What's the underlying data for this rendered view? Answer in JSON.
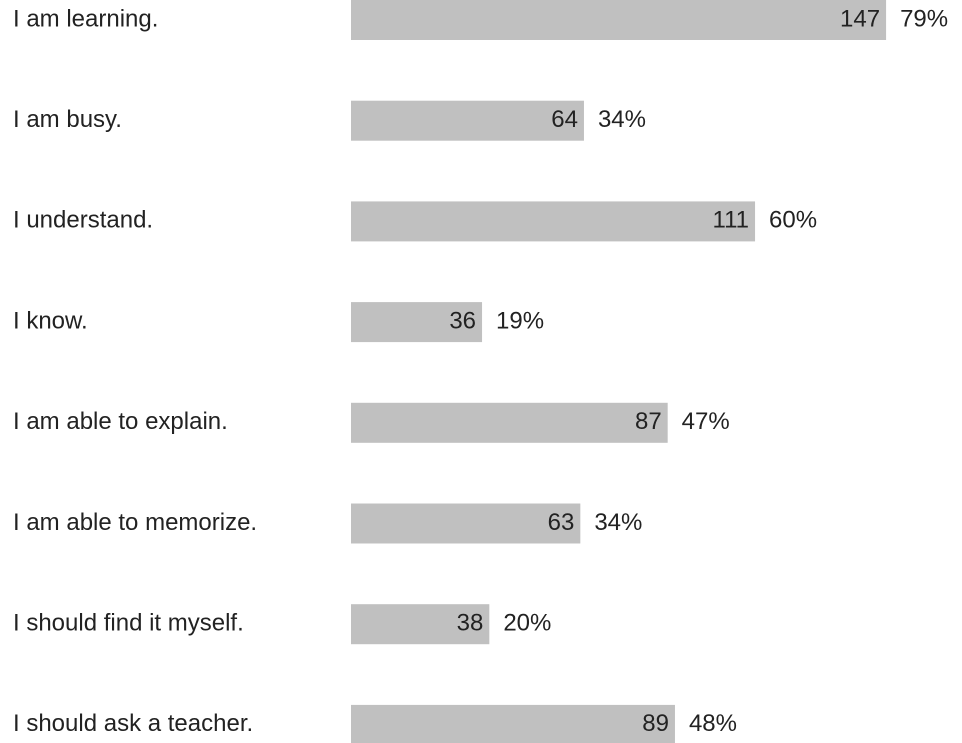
{
  "chart_data": {
    "type": "bar",
    "orientation": "horizontal",
    "categories": [
      "I am learning.",
      "I am busy.",
      "I understand.",
      "I know.",
      "I am able to explain.",
      "I am able to memorize.",
      "I should find it myself.",
      "I should ask a teacher."
    ],
    "values": [
      147,
      64,
      111,
      36,
      87,
      63,
      38,
      89
    ],
    "percent_labels": [
      "79%",
      "34%",
      "60%",
      "19%",
      "47%",
      "34%",
      "20%",
      "48%"
    ],
    "bar_color": "#c0c0c0",
    "grid": false,
    "legend": "none"
  }
}
